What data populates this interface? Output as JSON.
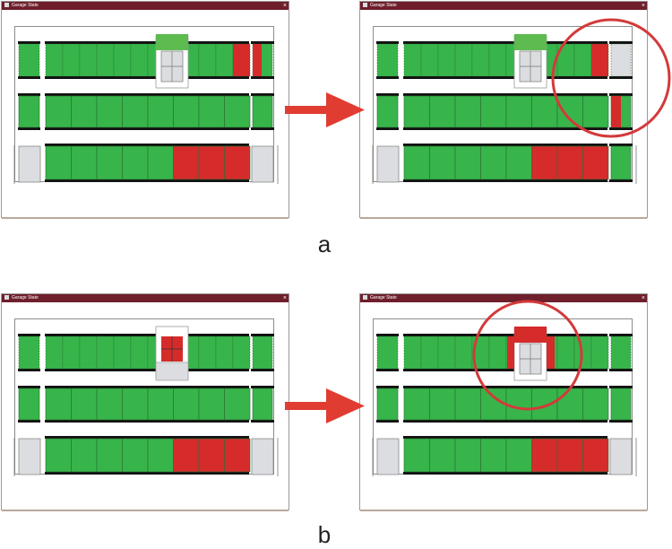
{
  "windows": [
    {
      "title": "Garage State",
      "close_glyph": "×"
    },
    {
      "title": "Garage State",
      "close_glyph": "×"
    },
    {
      "title": "Garage State",
      "close_glyph": "×"
    },
    {
      "title": "Garage State",
      "close_glyph": "×"
    }
  ],
  "captions": {
    "a": "a",
    "b": "b"
  },
  "colors": {
    "occupied": "#d62b2b",
    "free": "#37b54a",
    "empty": "#dcdde0",
    "transfer_free": "#5dbb50",
    "titlebar": "#6e1f2b",
    "arrow": "#e03c31",
    "highlight": "#d33a3a"
  }
}
